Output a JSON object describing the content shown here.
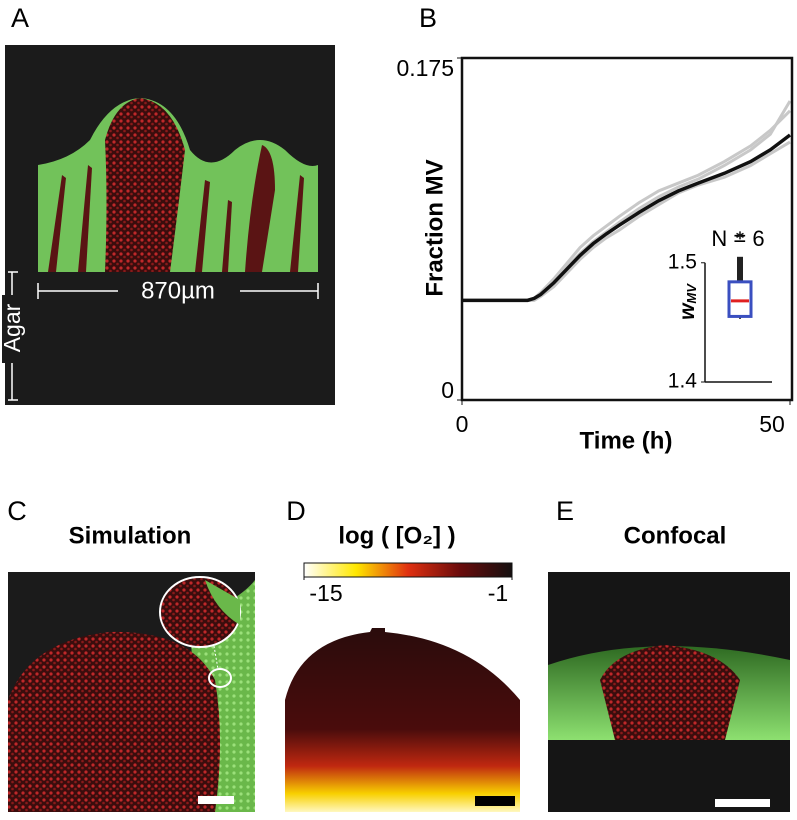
{
  "panels": {
    "a": {
      "label": "A",
      "scale_label": "870µm",
      "agar_label": "Agar"
    },
    "b": {
      "label": "B"
    },
    "c": {
      "label": "C",
      "title": "Simulation"
    },
    "d": {
      "label": "D"
    },
    "e": {
      "label": "E",
      "title": "Confocal"
    }
  },
  "chart_data": [
    {
      "type": "line",
      "xlabel": "Time (h)",
      "ylabel": "Fraction MV",
      "x": [
        0,
        5,
        10,
        11,
        12,
        14,
        16,
        18,
        20,
        22,
        24,
        27,
        30,
        33,
        36,
        40,
        44,
        47,
        50
      ],
      "xlim": [
        0,
        50
      ],
      "xticks": [
        0,
        50
      ],
      "ylim": [
        0,
        0.175
      ],
      "yticks": [
        0,
        0.175
      ],
      "series": [
        {
          "color": "#c8c8c8",
          "values": [
            0.051,
            0.051,
            0.051,
            0.052,
            0.055,
            0.062,
            0.07,
            0.078,
            0.084,
            0.089,
            0.094,
            0.101,
            0.107,
            0.111,
            0.115,
            0.122,
            0.13,
            0.138,
            0.148
          ]
        },
        {
          "color": "#c8c8c8",
          "values": [
            0.051,
            0.051,
            0.051,
            0.052,
            0.054,
            0.061,
            0.068,
            0.075,
            0.081,
            0.086,
            0.091,
            0.098,
            0.104,
            0.109,
            0.113,
            0.12,
            0.128,
            0.136,
            0.153
          ]
        },
        {
          "color": "#c8c8c8",
          "values": [
            0.051,
            0.051,
            0.051,
            0.051,
            0.053,
            0.058,
            0.065,
            0.072,
            0.078,
            0.083,
            0.087,
            0.094,
            0.1,
            0.106,
            0.11,
            0.114,
            0.12,
            0.126,
            0.132
          ]
        },
        {
          "color": "#111111",
          "values": [
            0.051,
            0.051,
            0.051,
            0.052,
            0.054,
            0.06,
            0.067,
            0.074,
            0.08,
            0.085,
            0.0895,
            0.096,
            0.102,
            0.107,
            0.111,
            0.116,
            0.122,
            0.128,
            0.1356
          ]
        }
      ]
    },
    {
      "type": "box",
      "annotation": "N = 6",
      "ylabel": {
        "main": "w",
        "sub": "MV"
      },
      "ylim": [
        1.4,
        1.53
      ],
      "yticks": [
        1.4,
        1.5
      ],
      "whisker_low": 1.453,
      "q1": 1.455,
      "median": 1.468,
      "q3": 1.484,
      "whisker_high": 1.505,
      "outliers": [
        1.523
      ],
      "box_color": "#3a4fc0",
      "median_color": "#e02020"
    },
    {
      "type": "colorbar",
      "title": "log ( [O₂] )",
      "xlim": [
        -15,
        -1
      ],
      "xticks": [
        -15,
        -1
      ],
      "colormap": [
        "#ffffff",
        "#ffe800",
        "#e03010",
        "#6a0c0c",
        "#151010"
      ]
    }
  ]
}
